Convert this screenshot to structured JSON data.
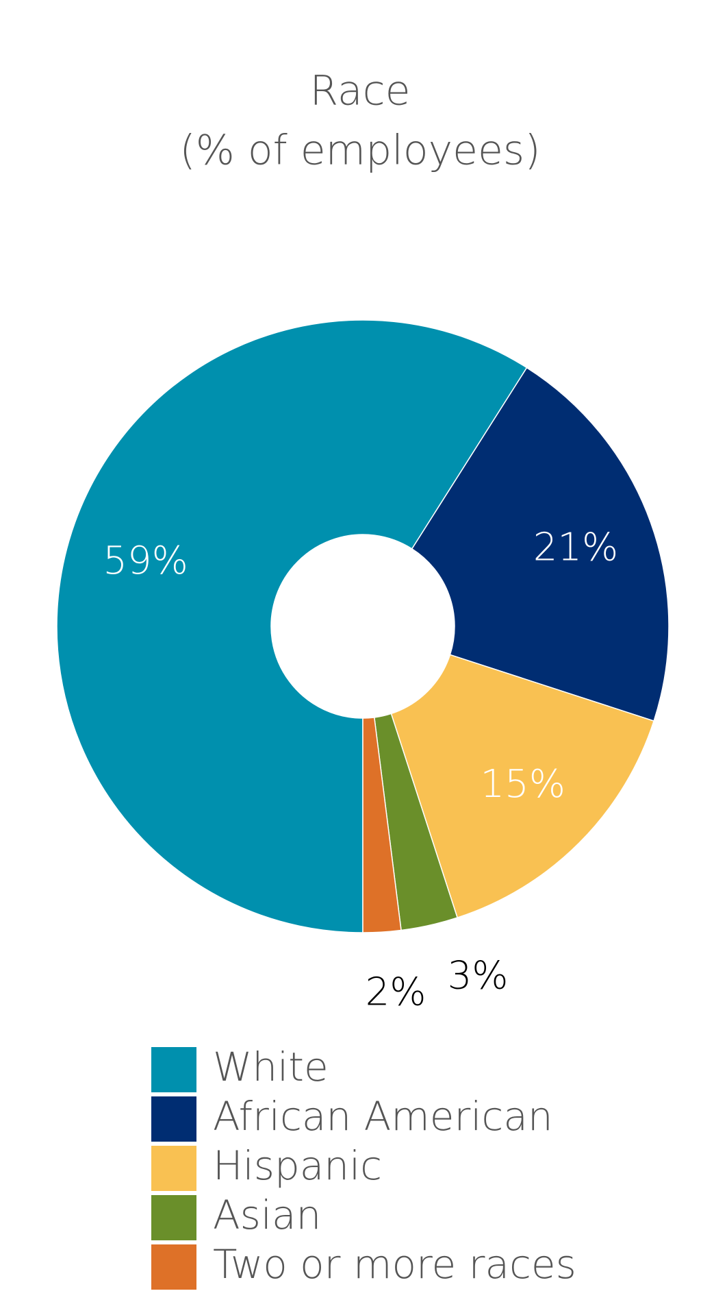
{
  "chart_data": {
    "type": "donut",
    "title": "Race",
    "subtitle": "(% of employees)",
    "categories": [
      "White",
      "African American",
      "Hispanic",
      "Asian",
      "Two or more races"
    ],
    "values": [
      59,
      21,
      15,
      3,
      2
    ],
    "value_labels": [
      "59%",
      "21%",
      "15%",
      "3%",
      "2%"
    ],
    "colors": [
      "#0090ae",
      "#002d72",
      "#f9c152",
      "#6a8f2a",
      "#de7128"
    ],
    "legend": "bottom"
  }
}
